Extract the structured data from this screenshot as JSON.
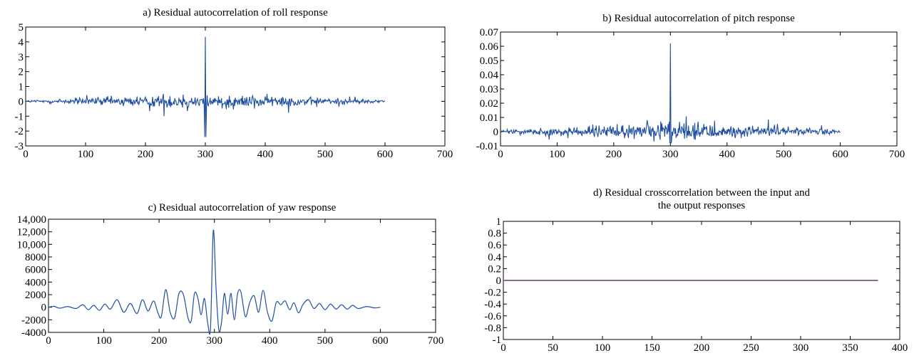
{
  "charts": [
    {
      "type": "line",
      "title_lines": [
        "a) Residual autocorrelation of roll response"
      ],
      "xlim": [
        0,
        700
      ],
      "ylim": [
        -3,
        5
      ],
      "x_ticks": [
        0,
        100,
        200,
        300,
        400,
        500,
        600,
        700
      ],
      "x_tick_labels": [
        "0",
        "100",
        "200",
        "300",
        "400",
        "500",
        "600",
        "700"
      ],
      "y_ticks": [
        -3,
        -2,
        -1,
        0,
        1,
        2,
        3,
        4,
        5
      ],
      "y_tick_labels": [
        "-3",
        "-2",
        "-1",
        "0",
        "1",
        "2",
        "3",
        "4",
        "5"
      ],
      "series_color": "#1f4ea1",
      "signal": {
        "kind": "noise",
        "x_range": [
          0,
          600
        ],
        "center": 300,
        "peak": 4.35,
        "near_center_extremes": [
          4.35,
          -2.4
        ],
        "envelope_center": 0.8,
        "envelope_edge": 0.12
      }
    },
    {
      "type": "line",
      "title_lines": [
        "b) Residual autocorrelation of pitch response"
      ],
      "xlim": [
        0,
        700
      ],
      "ylim": [
        -0.01,
        0.07
      ],
      "x_ticks": [
        0,
        100,
        200,
        300,
        400,
        500,
        600,
        700
      ],
      "x_tick_labels": [
        "0",
        "100",
        "200",
        "300",
        "400",
        "500",
        "600",
        "700"
      ],
      "y_ticks": [
        -0.01,
        0,
        0.01,
        0.02,
        0.03,
        0.04,
        0.05,
        0.06,
        0.07
      ],
      "y_tick_labels": [
        "-0.01",
        "0",
        "0.01",
        "0.02",
        "0.03",
        "0.04",
        "0.05",
        "0.06",
        "0.07"
      ],
      "series_color": "#1f4ea1",
      "signal": {
        "kind": "noise",
        "x_range": [
          0,
          600
        ],
        "center": 300,
        "peak": 0.062,
        "near_center_extremes": [
          0.062,
          -0.008
        ],
        "envelope_center": 0.009,
        "envelope_edge": 0.002
      }
    },
    {
      "type": "line",
      "title_lines": [
        "c) Residual autocorrelation of yaw response"
      ],
      "xlim": [
        0,
        700
      ],
      "ylim": [
        -4000,
        14000
      ],
      "x_ticks": [
        0,
        100,
        200,
        300,
        400,
        500,
        600,
        700
      ],
      "x_tick_labels": [
        "0",
        "100",
        "200",
        "300",
        "400",
        "500",
        "600",
        "700"
      ],
      "y_ticks": [
        -4000,
        -2000,
        0,
        2000,
        4000,
        6000,
        8000,
        10000,
        12000,
        14000
      ],
      "y_tick_labels": [
        "-4000",
        "-2000",
        "0",
        "2000",
        "4000",
        "6000",
        "8000",
        "10,000",
        "12,000",
        "14,000"
      ],
      "series_color": "#1f4ea1",
      "signal": {
        "kind": "smooth",
        "x": [
          0,
          10,
          20,
          35,
          50,
          62,
          72,
          82,
          92,
          102,
          112,
          124,
          136,
          148,
          160,
          170,
          180,
          190,
          198,
          204,
          212,
          220,
          228,
          236,
          244,
          252,
          258,
          264,
          270,
          276,
          282,
          288,
          293,
          298,
          303,
          308,
          313,
          318,
          324,
          330,
          336,
          342,
          348,
          356,
          364,
          372,
          380,
          388,
          396,
          404,
          412,
          420,
          428,
          436,
          444,
          452,
          460,
          470,
          480,
          490,
          500,
          510,
          520,
          530,
          540,
          550,
          560,
          575,
          590,
          600
        ],
        "y": [
          0,
          150,
          -150,
          100,
          -200,
          400,
          -400,
          300,
          -500,
          500,
          -300,
          1200,
          -800,
          600,
          -1000,
          1200,
          -600,
          1000,
          -900,
          -1500,
          2800,
          -800,
          -1700,
          2200,
          2000,
          -1600,
          -2200,
          2200,
          1500,
          -1200,
          1400,
          -2600,
          -3200,
          12200,
          3000,
          -3600,
          -2300,
          2200,
          -1100,
          2200,
          -2000,
          2200,
          2400,
          -1500,
          800,
          1800,
          -800,
          2700,
          -800,
          -2200,
          800,
          400,
          1000,
          -400,
          700,
          -900,
          400,
          1200,
          -200,
          600,
          -400,
          500,
          -300,
          400,
          -300,
          300,
          -200,
          100,
          -100,
          0
        ]
      }
    },
    {
      "type": "line",
      "title_lines": [
        "d) Residual crosscorrelation between the input and",
        "the output responses"
      ],
      "xlim": [
        0,
        400
      ],
      "ylim": [
        -1,
        1
      ],
      "x_ticks": [
        0,
        50,
        100,
        150,
        200,
        250,
        300,
        350,
        400
      ],
      "x_tick_labels": [
        "0",
        "50",
        "100",
        "150",
        "200",
        "250",
        "300",
        "350",
        "400"
      ],
      "y_ticks": [
        -1,
        -0.8,
        -0.6,
        -0.4,
        -0.2,
        0,
        0.2,
        0.4,
        0.6,
        0.8,
        1
      ],
      "y_tick_labels": [
        "-1",
        "-0.8",
        "-0.6",
        "-0.4",
        "-0.2",
        "0",
        "0.2",
        "0.4",
        "0.6",
        "0.8",
        "1"
      ],
      "series_color": "#8a6b8f",
      "signal": {
        "kind": "flat",
        "x": [
          0,
          378
        ],
        "y": [
          0,
          0
        ]
      }
    }
  ]
}
